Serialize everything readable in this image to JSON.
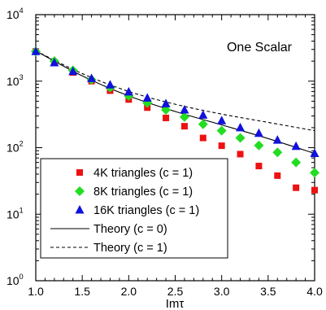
{
  "chart_data": {
    "type": "scatter",
    "annotation": "One Scalar",
    "xlabel": "Imτ",
    "ylabel": "",
    "xlim": [
      1.0,
      4.0
    ],
    "ylim_log10": [
      0,
      4
    ],
    "yscale": "log",
    "grid": false,
    "legend_position": "bottom-left",
    "x_ticks": [
      "1.0",
      "1.5",
      "2.0",
      "2.5",
      "3.0",
      "3.5",
      "4.0"
    ],
    "y_ticks": [
      {
        "base": "10",
        "exp": "0",
        "value": 1
      },
      {
        "base": "10",
        "exp": "1",
        "value": 10
      },
      {
        "base": "10",
        "exp": "2",
        "value": 100
      },
      {
        "base": "10",
        "exp": "3",
        "value": 1000
      },
      {
        "base": "10",
        "exp": "4",
        "value": 10000
      }
    ],
    "series": [
      {
        "name": "4K triangles (c = 1)",
        "marker": "square",
        "color": "#ee1111",
        "x": [
          1.0,
          1.2,
          1.4,
          1.6,
          1.8,
          2.0,
          2.2,
          2.4,
          2.6,
          2.8,
          3.0,
          3.2,
          3.4,
          3.6,
          3.8,
          4.0
        ],
        "y": [
          2800,
          1900,
          1350,
          1000,
          720,
          530,
          400,
          280,
          210,
          140,
          107,
          80,
          53,
          38,
          25,
          23
        ]
      },
      {
        "name": "8K triangles (c = 1)",
        "marker": "diamond",
        "color": "#22dd22",
        "x": [
          1.0,
          1.2,
          1.4,
          1.6,
          1.8,
          2.0,
          2.2,
          2.4,
          2.6,
          2.8,
          3.0,
          3.2,
          3.4,
          3.6,
          3.8,
          4.0
        ],
        "y": [
          2800,
          2000,
          1450,
          1050,
          800,
          600,
          470,
          370,
          290,
          225,
          180,
          140,
          108,
          85,
          60,
          42
        ]
      },
      {
        "name": "16K triangles (c = 1)",
        "marker": "triangle",
        "color": "#1111dd",
        "x": [
          1.0,
          1.2,
          1.4,
          1.6,
          1.8,
          2.0,
          2.2,
          2.4,
          2.6,
          2.8,
          3.0,
          3.2,
          3.4,
          3.6,
          3.8,
          4.0
        ],
        "y": [
          2800,
          1900,
          1400,
          1100,
          880,
          690,
          560,
          460,
          370,
          310,
          255,
          200,
          165,
          130,
          105,
          82
        ]
      },
      {
        "name": "Theory (c = 0)",
        "line": "solid",
        "color": "#000000",
        "x": [
          1.0,
          1.5,
          2.0,
          2.5,
          3.0,
          3.5,
          4.0
        ],
        "y": [
          2850,
          1200,
          600,
          350,
          220,
          137,
          82
        ]
      },
      {
        "name": "Theory (c = 1)",
        "line": "dashed",
        "color": "#000000",
        "x": [
          1.0,
          1.5,
          2.0,
          2.5,
          3.0,
          3.5,
          4.0
        ],
        "y": [
          2850,
          1300,
          700,
          450,
          320,
          240,
          180
        ]
      }
    ]
  }
}
